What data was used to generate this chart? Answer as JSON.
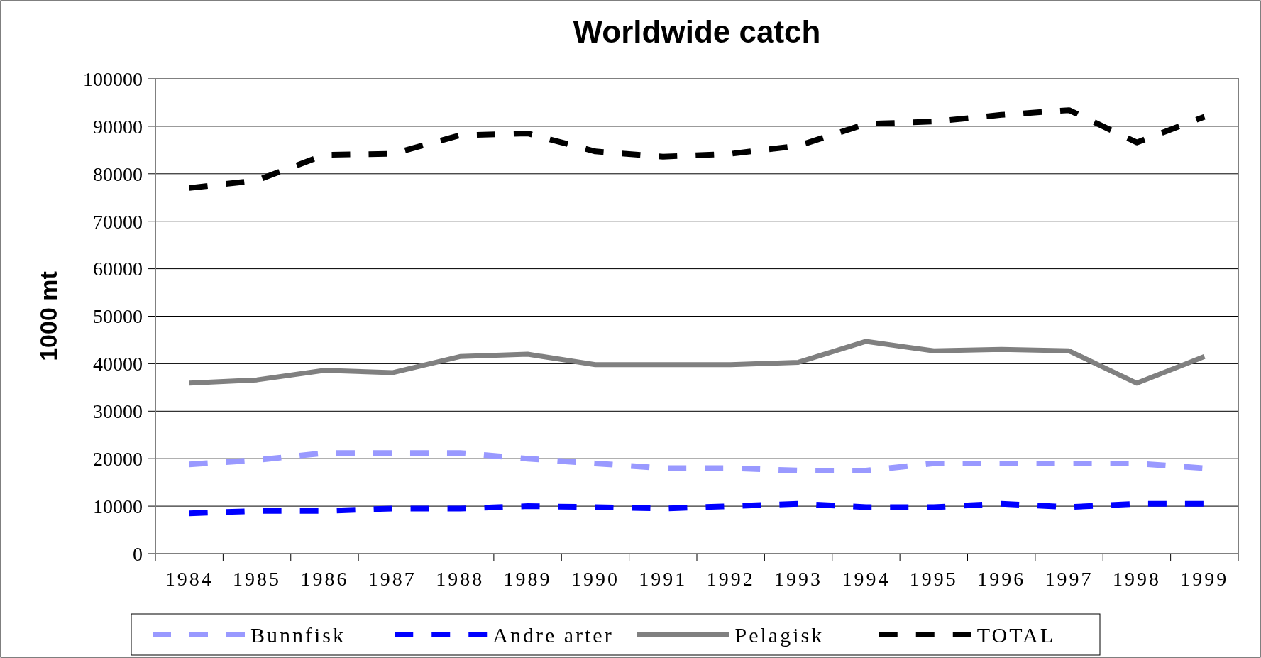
{
  "chart_data": {
    "type": "line",
    "title": "Worldwide catch",
    "ylabel": "1000 mt",
    "categories": [
      "1984",
      "1985",
      "1986",
      "1987",
      "1988",
      "1989",
      "1990",
      "1991",
      "1992",
      "1993",
      "1994",
      "1995",
      "1996",
      "1997",
      "1998",
      "1999"
    ],
    "series": [
      {
        "name": "Bunnfisk",
        "color": "#9999ff",
        "line_style": "dashed",
        "values": [
          18800,
          19700,
          21200,
          21200,
          21200,
          20000,
          19000,
          18000,
          18000,
          17500,
          17500,
          19000,
          19000,
          19000,
          19000,
          18000
        ]
      },
      {
        "name": "Andre arter",
        "color": "#0000ff",
        "line_style": "dashed",
        "values": [
          8500,
          9000,
          9000,
          9500,
          9500,
          10000,
          9800,
          9500,
          10000,
          10500,
          9800,
          9800,
          10500,
          9800,
          10500,
          10500
        ]
      },
      {
        "name": "Pelagisk",
        "color": "#808080",
        "line_style": "solid",
        "values": [
          35900,
          36600,
          38600,
          38100,
          41500,
          42000,
          39800,
          39800,
          39800,
          40300,
          44700,
          42700,
          43000,
          42700,
          35900,
          41500
        ]
      },
      {
        "name": "TOTAL",
        "color": "#000000",
        "line_style": "dashed",
        "values": [
          77000,
          78600,
          84000,
          84200,
          88100,
          88500,
          84700,
          83600,
          84200,
          85900,
          90500,
          91000,
          92400,
          93400,
          86600,
          92000
        ]
      }
    ],
    "ylim": [
      0,
      100000
    ],
    "yticks": [
      0,
      10000,
      20000,
      30000,
      40000,
      50000,
      60000,
      70000,
      80000,
      90000,
      100000
    ],
    "grid": "y",
    "legend": "bottom"
  }
}
